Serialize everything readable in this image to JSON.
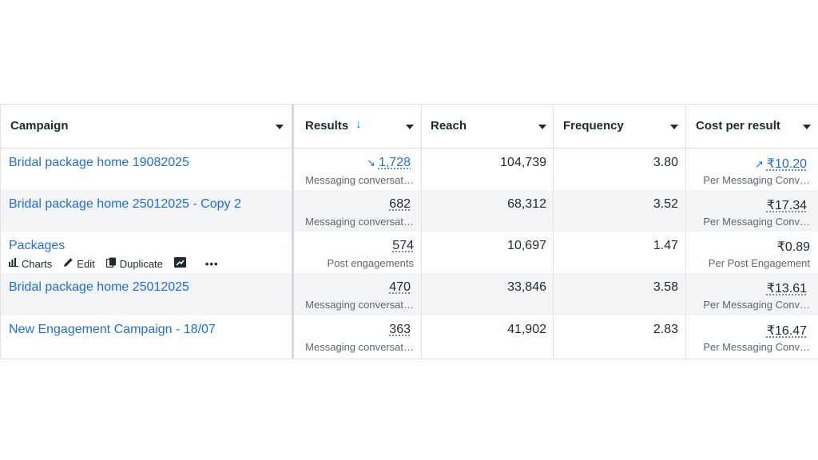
{
  "header": {
    "campaign": "Campaign",
    "results": "Results",
    "reach": "Reach",
    "frequency": "Frequency",
    "cost_per_result": "Cost per result"
  },
  "icons": {
    "sort": "arrow-down-icon",
    "dropdown": "caret-down-icon",
    "trend_down": "trend-down-icon",
    "trend_up": "trend-up-icon",
    "charts": "bar-chart-icon",
    "edit": "pencil-icon",
    "duplicate": "duplicate-icon",
    "view": "open-chart-icon",
    "more": "ellipsis-icon"
  },
  "colors": {
    "link": "#216fdb",
    "row_alt": "#f2f4f6",
    "sort_arrow": "#1877f2"
  },
  "row_actions": {
    "charts": "Charts",
    "edit": "Edit",
    "duplicate": "Duplicate",
    "more": "•••"
  },
  "rows": [
    {
      "name": "Bridal package home 19082025",
      "results": "1,728",
      "results_type": "Messaging conversat…",
      "reach": "104,739",
      "frequency": "3.80",
      "cost": "₹10.20",
      "cost_type": "Per Messaging Conv…"
    },
    {
      "name": "Bridal package home 25012025 - Copy 2",
      "results": "682",
      "results_type": "Messaging conversat…",
      "reach": "68,312",
      "frequency": "3.52",
      "cost": "₹17.34",
      "cost_type": "Per Messaging Conv…"
    },
    {
      "name": "Packages",
      "results": "574",
      "results_type": "Post engagements",
      "reach": "10,697",
      "frequency": "1.47",
      "cost": "₹0.89",
      "cost_type": "Per Post Engagement"
    },
    {
      "name": "Bridal package home 25012025",
      "results": "470",
      "results_type": "Messaging conversat…",
      "reach": "33,846",
      "frequency": "3.58",
      "cost": "₹13.61",
      "cost_type": "Per Messaging Conv…"
    },
    {
      "name": "New Engagement Campaign - 18/07",
      "results": "363",
      "results_type": "Messaging conversat…",
      "reach": "41,902",
      "frequency": "2.83",
      "cost": "₹16.47",
      "cost_type": "Per Messaging Conv…"
    }
  ]
}
